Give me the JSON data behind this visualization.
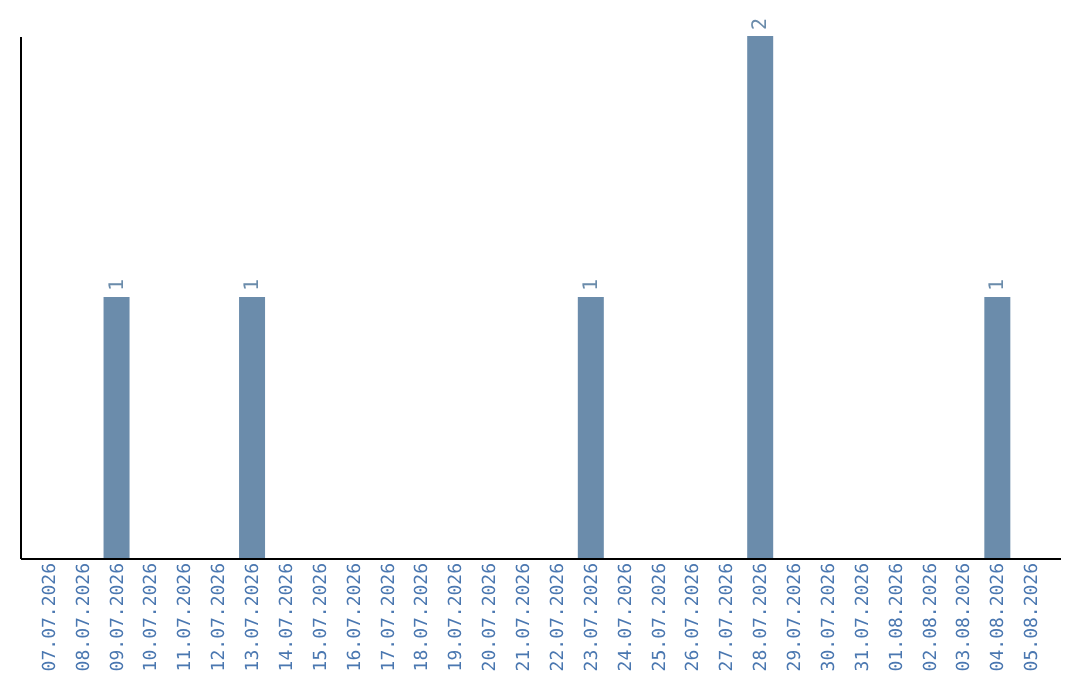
{
  "chart_data": {
    "type": "bar",
    "categories": [
      "07.07.2026",
      "08.07.2026",
      "09.07.2026",
      "10.07.2026",
      "11.07.2026",
      "12.07.2026",
      "13.07.2026",
      "14.07.2026",
      "15.07.2026",
      "16.07.2026",
      "17.07.2026",
      "18.07.2026",
      "19.07.2026",
      "20.07.2026",
      "21.07.2026",
      "22.07.2026",
      "23.07.2026",
      "24.07.2026",
      "25.07.2026",
      "26.07.2026",
      "27.07.2026",
      "28.07.2026",
      "29.07.2026",
      "30.07.2026",
      "31.07.2026",
      "01.08.2026",
      "02.08.2026",
      "03.08.2026",
      "04.08.2026",
      "05.08.2026"
    ],
    "values": [
      0,
      0,
      1,
      0,
      0,
      0,
      1,
      0,
      0,
      0,
      0,
      0,
      0,
      0,
      0,
      0,
      1,
      0,
      0,
      0,
      0,
      2,
      0,
      0,
      0,
      0,
      0,
      0,
      1,
      0
    ],
    "value_labels": [
      null,
      null,
      "1",
      null,
      null,
      null,
      "1",
      null,
      null,
      null,
      null,
      null,
      null,
      null,
      null,
      null,
      "1",
      null,
      null,
      null,
      null,
      "2",
      null,
      null,
      null,
      null,
      null,
      null,
      "1",
      null
    ],
    "color": "#6b8cab",
    "tick_labels": "x",
    "grid": false
  }
}
